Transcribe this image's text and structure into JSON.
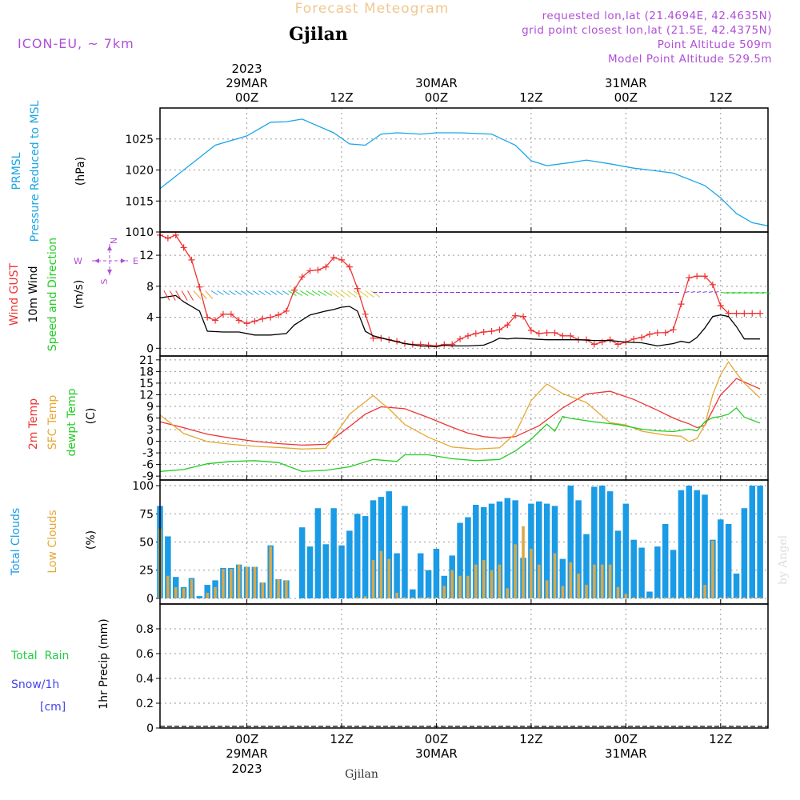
{
  "header": {
    "title": "Forecast Meteogram",
    "location": "Gjilan",
    "model": "ICON-EU, ~ 7km",
    "requested": "requested lon,lat (21.4694E, 42.4635N)",
    "gridpoint": "grid point closest lon,lat (21.5E, 42.4375N)",
    "altitude": "Point Altitude 509m",
    "model_altitude": "Model Point Altitude 529.5m"
  },
  "watermark": "by Angel",
  "footer_location": "Gjilan",
  "time_axis": {
    "year": "2023",
    "ticks": [
      {
        "label": "00Z",
        "date": "29MAR",
        "h": 24
      },
      {
        "label": "12Z",
        "date": "",
        "h": 36
      },
      {
        "label": "00Z",
        "date": "30MAR",
        "h": 48
      },
      {
        "label": "12Z",
        "date": "",
        "h": 60
      },
      {
        "label": "00Z",
        "date": "31MAR",
        "h": 72
      },
      {
        "label": "12Z",
        "date": "",
        "h": 84
      }
    ]
  },
  "colors": {
    "pressure": "#1aa6e6",
    "gust": "#ee3333",
    "wind": "#000000",
    "temp2m": "#ee3333",
    "sfc": "#e6a833",
    "dewpt": "#22cc22",
    "total_cloud": "#1a9be6",
    "low_cloud": "#d9a84a",
    "rain": "#22cc44",
    "snow": "#4444ee",
    "info": "#b04fd6",
    "title": "#f0c890"
  },
  "chart_data": [
    {
      "type": "line",
      "id": "pressure",
      "label_lines": [
        "PRMSL",
        "Pressure Reduced to MSL"
      ],
      "unit": "(hPa)",
      "ylim": [
        1010,
        1030
      ],
      "yticks": [
        1010,
        1015,
        1020,
        1025
      ],
      "series": [
        {
          "name": "PRMSL",
          "x": [
            13,
            16,
            20,
            24,
            27,
            29,
            31,
            35,
            37,
            39,
            41,
            43,
            46,
            48,
            51,
            55,
            58,
            60,
            62,
            65,
            67,
            70,
            73,
            75,
            78,
            82,
            84,
            86,
            88,
            90
          ],
          "y": [
            1017,
            1020,
            1024,
            1025.5,
            1027.7,
            1027.8,
            1028.2,
            1026,
            1024.2,
            1024,
            1025.8,
            1026,
            1025.8,
            1026,
            1026,
            1025.8,
            1024,
            1021.5,
            1020.7,
            1021.2,
            1021.6,
            1021,
            1020.3,
            1020,
            1019.5,
            1017.5,
            1015.5,
            1013,
            1011.5,
            1011
          ]
        }
      ]
    },
    {
      "type": "line",
      "id": "wind",
      "label_lines": [
        "Wind GUST",
        "10m Wind",
        "Speed and Direction"
      ],
      "unit": "(m/s)",
      "compass": {
        "n": "N",
        "s": "S",
        "w": "W",
        "e": "E"
      },
      "ylim": [
        -1,
        15
      ],
      "yticks": [
        0,
        4,
        8,
        12
      ],
      "series": [
        {
          "name": "Wind GUST",
          "x": [
            13,
            14,
            15,
            16,
            17,
            18,
            19,
            20,
            21,
            22,
            23,
            24,
            25,
            26,
            27,
            28,
            29,
            30,
            31,
            32,
            33,
            34,
            35,
            36,
            37,
            38,
            39,
            40,
            41,
            42,
            43,
            44,
            45,
            46,
            47,
            48,
            49,
            50,
            51,
            52,
            53,
            54,
            55,
            56,
            57,
            58,
            59,
            60,
            61,
            62,
            63,
            64,
            65,
            66,
            67,
            68,
            69,
            70,
            71,
            72,
            73,
            74,
            75,
            76,
            77,
            78,
            79,
            80,
            81,
            82,
            83,
            84,
            85,
            86,
            87,
            88,
            89
          ],
          "y": [
            14.6,
            14.2,
            14.6,
            13,
            11.4,
            7.9,
            4,
            3.6,
            4.4,
            4.4,
            3.6,
            3.2,
            3.5,
            3.8,
            4,
            4.3,
            4.8,
            7.5,
            9.2,
            10,
            10.1,
            10.5,
            11.7,
            11.4,
            10.5,
            7.7,
            4.4,
            1.3,
            1.3,
            1.1,
            0.9,
            0.6,
            0.5,
            0.5,
            0.4,
            0.3,
            0.5,
            0.5,
            1.2,
            1.6,
            1.9,
            2.1,
            2.2,
            2.4,
            3,
            4.2,
            4.1,
            2.3,
            1.9,
            2,
            2,
            1.6,
            1.6,
            1.1,
            1.1,
            0.5,
            0.8,
            1.1,
            0.5,
            0.8,
            1.2,
            1.4,
            1.8,
            2,
            2,
            2.4,
            5.7,
            9.1,
            9.3,
            9.3,
            8.2,
            5.5,
            4.5,
            4.5,
            4.5,
            4.5,
            4.5
          ]
        },
        {
          "name": "10m Wind",
          "x": [
            13,
            15,
            16,
            18,
            19,
            21,
            23,
            25,
            27,
            29,
            30,
            32,
            34,
            35,
            36,
            37,
            38,
            39,
            40,
            42,
            44,
            46,
            48,
            49,
            50,
            52,
            54,
            55,
            56,
            57,
            58,
            60,
            62,
            64,
            66,
            68,
            70,
            72,
            74,
            76,
            78,
            79,
            80,
            81,
            82,
            83,
            84,
            85,
            86,
            87,
            88,
            89
          ],
          "y": [
            6.5,
            6.8,
            6,
            4.8,
            2.2,
            2.1,
            2.1,
            1.7,
            1.7,
            1.9,
            3,
            4.3,
            4.8,
            5,
            5.3,
            5.4,
            4.8,
            2.2,
            1.6,
            1.1,
            0.6,
            0.3,
            0.2,
            0.4,
            0.3,
            0.3,
            0.4,
            0.8,
            1.3,
            1.2,
            1.3,
            1.2,
            1.1,
            1.1,
            1.1,
            1,
            1,
            0.8,
            0.7,
            0.3,
            0.6,
            0.9,
            0.7,
            1.4,
            2.6,
            4.1,
            4.3,
            4.1,
            2.8,
            1.2,
            1.2,
            1.2
          ]
        }
      ]
    },
    {
      "type": "line",
      "id": "temperature",
      "label_lines": [
        "2m Temp",
        "SFC Temp",
        "dewpt Temp"
      ],
      "unit": "(C)",
      "ylim": [
        -10,
        22
      ],
      "yticks": [
        -9,
        -6,
        -3,
        0,
        3,
        6,
        9,
        12,
        15,
        18,
        21
      ],
      "series": [
        {
          "name": "2m Temp",
          "x": [
            13,
            16,
            19,
            22,
            25,
            28,
            31,
            34,
            37,
            39,
            41,
            44,
            47,
            50,
            52,
            54,
            56,
            58,
            61,
            64,
            67,
            70,
            73,
            76,
            78,
            79,
            80,
            81,
            82,
            83,
            84,
            85,
            86,
            89
          ],
          "y": [
            5,
            3.5,
            1.8,
            0.8,
            0,
            -0.6,
            -1,
            -0.8,
            3.8,
            7,
            8.9,
            8.4,
            6.1,
            3.6,
            2.1,
            1.2,
            0.8,
            1.2,
            4,
            8.6,
            12.2,
            12.9,
            10.8,
            8,
            6,
            5.2,
            4.5,
            3.5,
            4.1,
            8,
            12,
            14,
            16.2,
            13.5
          ]
        },
        {
          "name": "SFC Temp",
          "x": [
            13,
            16,
            19,
            22,
            25,
            28,
            31,
            34,
            37,
            40,
            41,
            42,
            44,
            47,
            50,
            53,
            56,
            58,
            60,
            62,
            64,
            67,
            69,
            70,
            72,
            74,
            77,
            79,
            80,
            81,
            82,
            83,
            84,
            85,
            86,
            87,
            89
          ],
          "y": [
            6.8,
            2,
            -0.1,
            -0.8,
            -1.3,
            -1.6,
            -2,
            -1.8,
            7,
            11.8,
            10,
            8.4,
            4.3,
            1,
            -1.5,
            -2,
            -1.7,
            2,
            10.5,
            14.8,
            12.3,
            10,
            6.5,
            4.8,
            4.2,
            2.6,
            1.6,
            1.3,
            -0.1,
            0.7,
            4.2,
            12,
            17.2,
            20.5,
            17.6,
            15,
            11.2
          ]
        },
        {
          "name": "dewpt Temp",
          "x": [
            13,
            16,
            19,
            22,
            25,
            28,
            31,
            34,
            37,
            40,
            43,
            44,
            47,
            50,
            53,
            56,
            58,
            60,
            62,
            63,
            64,
            65,
            66,
            67,
            68,
            71,
            74,
            76,
            78,
            80,
            81,
            82,
            83,
            84,
            85,
            86,
            87,
            89
          ],
          "y": [
            -7.8,
            -7.3,
            -5.8,
            -5.2,
            -5,
            -5.5,
            -7.8,
            -7.5,
            -6.6,
            -4.7,
            -5.2,
            -3.5,
            -3.5,
            -4.5,
            -5,
            -4.7,
            -2.5,
            0.5,
            4.4,
            2.6,
            6.4,
            5.9,
            5.6,
            5.3,
            5,
            4.3,
            3.1,
            2.7,
            2.5,
            3.1,
            2.7,
            5,
            6.1,
            6.4,
            7,
            8.6,
            6.2,
            4.7
          ]
        }
      ]
    },
    {
      "type": "bar",
      "id": "clouds",
      "label_lines": [
        "Total Clouds",
        "Low Clouds"
      ],
      "unit": "(%)",
      "ylim": [
        -5,
        105
      ],
      "yticks": [
        0,
        25,
        50,
        75,
        100
      ],
      "x_start": 13,
      "x_step": 1,
      "series": [
        {
          "name": "Total Clouds",
          "values": [
            82,
            55,
            19,
            10,
            18,
            2,
            12,
            16,
            27,
            27,
            30,
            28,
            28,
            14,
            47,
            17,
            16,
            0,
            63,
            46,
            80,
            48,
            80,
            47,
            60,
            75,
            73,
            87,
            90,
            95,
            40,
            82,
            8,
            40,
            25,
            44,
            20,
            38,
            67,
            72,
            83,
            81,
            84,
            86,
            89,
            87,
            36,
            84,
            86,
            84,
            82,
            35,
            100,
            87,
            57,
            99,
            100,
            95,
            60,
            84,
            52,
            45,
            6,
            46,
            66,
            43,
            96,
            100,
            96,
            92,
            52,
            70,
            66,
            22,
            80,
            100,
            100
          ]
        },
        {
          "name": "Low Clouds",
          "values": [
            62,
            20,
            10,
            9,
            17,
            0,
            5,
            10,
            26,
            26,
            30,
            28,
            28,
            14,
            46,
            17,
            16,
            0,
            0,
            0,
            0,
            0,
            0,
            0,
            0,
            1,
            2,
            34,
            42,
            35,
            5,
            1,
            1,
            1,
            1,
            1,
            11,
            25,
            20,
            20,
            30,
            34,
            25,
            30,
            9,
            48,
            64,
            44,
            30,
            16,
            40,
            11,
            32,
            22,
            12,
            30,
            30,
            30,
            10,
            4,
            1,
            1,
            1,
            1,
            1,
            1,
            1,
            1,
            1,
            12,
            51,
            1,
            1,
            1,
            1,
            1,
            1
          ]
        }
      ]
    },
    {
      "type": "bar",
      "id": "precip",
      "label_lines": [
        "Total  Rain",
        "Snow/1h",
        "[cm]"
      ],
      "unit": "1hr Precip (mm)",
      "ylim": [
        0,
        1.0
      ],
      "yticks": [
        0,
        0.2,
        0.4,
        0.6,
        0.8
      ],
      "series": [
        {
          "name": "Total Rain",
          "values": []
        },
        {
          "name": "Snow/1h",
          "values": []
        }
      ]
    }
  ]
}
